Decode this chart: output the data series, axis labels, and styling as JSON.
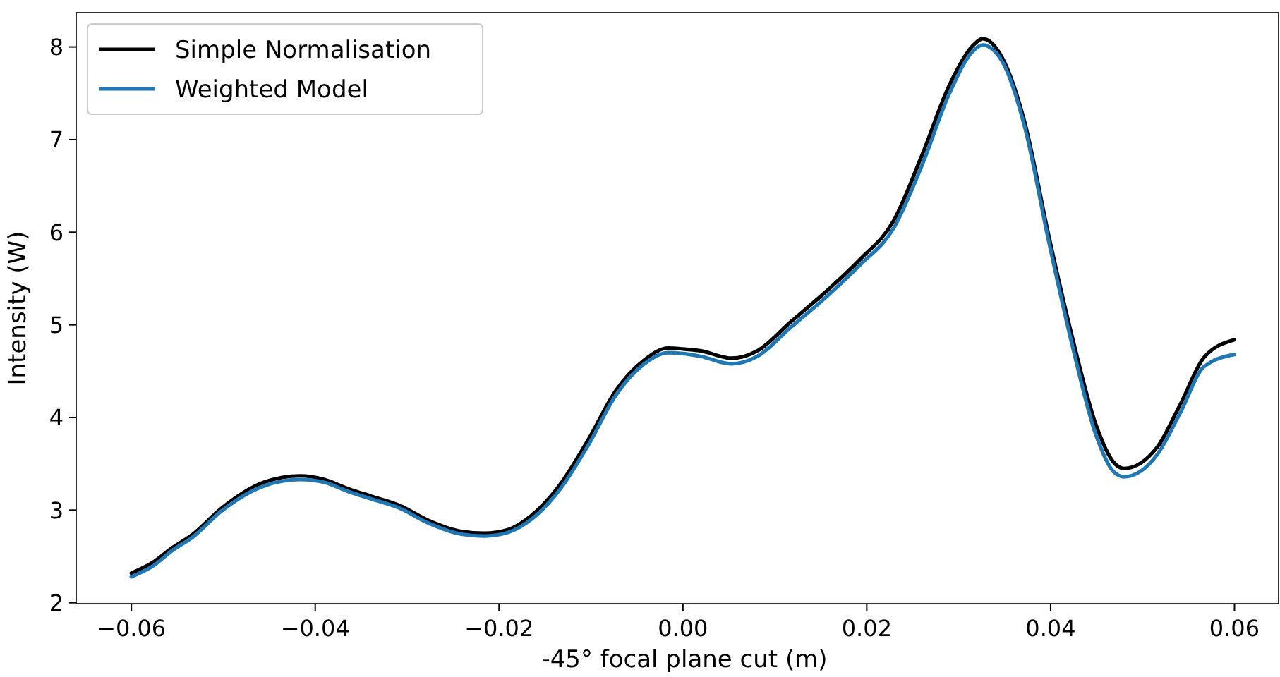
{
  "chart_data": {
    "type": "line",
    "xlabel": "-45° focal plane cut (m)",
    "ylabel": "Intensity (W)",
    "xlim": [
      -0.066,
      0.0648
    ],
    "ylim": [
      1.99,
      8.37
    ],
    "xticks": [
      {
        "value": -0.06,
        "label": "−0.06"
      },
      {
        "value": -0.04,
        "label": "−0.04"
      },
      {
        "value": -0.02,
        "label": "−0.02"
      },
      {
        "value": 0,
        "label": "0.00"
      },
      {
        "value": 0.02,
        "label": "0.02"
      },
      {
        "value": 0.04,
        "label": "0.04"
      },
      {
        "value": 0.06,
        "label": "0.06"
      }
    ],
    "yticks": [
      2,
      3,
      4,
      5,
      6,
      7,
      8
    ],
    "grid": false,
    "legend": "top left",
    "marker": "none",
    "line_style": "solid",
    "series": [
      {
        "name": "Simple Normalisation",
        "color": "#000000",
        "x": [
          -0.06,
          -0.0576,
          -0.0556,
          -0.0533,
          -0.0502,
          -0.0456,
          -0.0416,
          -0.039,
          -0.0364,
          -0.0339,
          -0.0308,
          -0.0277,
          -0.0241,
          -0.0216,
          -0.019,
          -0.0165,
          -0.0134,
          -0.0103,
          -0.0073,
          -0.0042,
          -0.0016,
          0,
          0.0019,
          0.0053,
          0.0081,
          0.0117,
          0.0158,
          0.0193,
          0.0229,
          0.026,
          0.029,
          0.0316,
          0.0326,
          0.0347,
          0.0372,
          0.0398,
          0.0424,
          0.0449,
          0.047,
          0.048,
          0.0516,
          0.0541,
          0.0567,
          0.06
        ],
        "values": [
          2.32,
          2.44,
          2.59,
          2.74,
          3.02,
          3.3,
          3.37,
          3.33,
          3.23,
          3.15,
          3.05,
          2.89,
          2.77,
          2.75,
          2.79,
          2.94,
          3.27,
          3.76,
          4.29,
          4.62,
          4.75,
          4.74,
          4.72,
          4.64,
          4.72,
          5.03,
          5.38,
          5.71,
          6.12,
          6.83,
          7.59,
          8.02,
          8.09,
          7.89,
          7.18,
          5.96,
          4.85,
          3.93,
          3.5,
          3.45,
          3.68,
          4.14,
          4.65,
          4.84
        ]
      },
      {
        "name": "Weighted Model",
        "color": "#1f77b4",
        "x": [
          -0.06,
          -0.0576,
          -0.0556,
          -0.0533,
          -0.0502,
          -0.0456,
          -0.0416,
          -0.039,
          -0.0364,
          -0.0339,
          -0.0308,
          -0.0277,
          -0.0241,
          -0.0216,
          -0.019,
          -0.0165,
          -0.0134,
          -0.0103,
          -0.0073,
          -0.0042,
          -0.0016,
          0,
          0.0019,
          0.0053,
          0.0081,
          0.0117,
          0.0158,
          0.0193,
          0.0229,
          0.026,
          0.029,
          0.0316,
          0.0326,
          0.0347,
          0.0372,
          0.0398,
          0.0424,
          0.0449,
          0.047,
          0.048,
          0.0516,
          0.0541,
          0.0567,
          0.06
        ],
        "values": [
          2.28,
          2.4,
          2.56,
          2.71,
          2.99,
          3.26,
          3.33,
          3.3,
          3.2,
          3.12,
          3.02,
          2.86,
          2.74,
          2.72,
          2.76,
          2.9,
          3.22,
          3.7,
          4.24,
          4.58,
          4.7,
          4.69,
          4.66,
          4.58,
          4.66,
          4.97,
          5.32,
          5.65,
          6.04,
          6.72,
          7.5,
          7.96,
          8.02,
          7.85,
          7.13,
          5.9,
          4.76,
          3.82,
          3.4,
          3.36,
          3.6,
          4.05,
          4.55,
          4.68
        ]
      }
    ]
  }
}
